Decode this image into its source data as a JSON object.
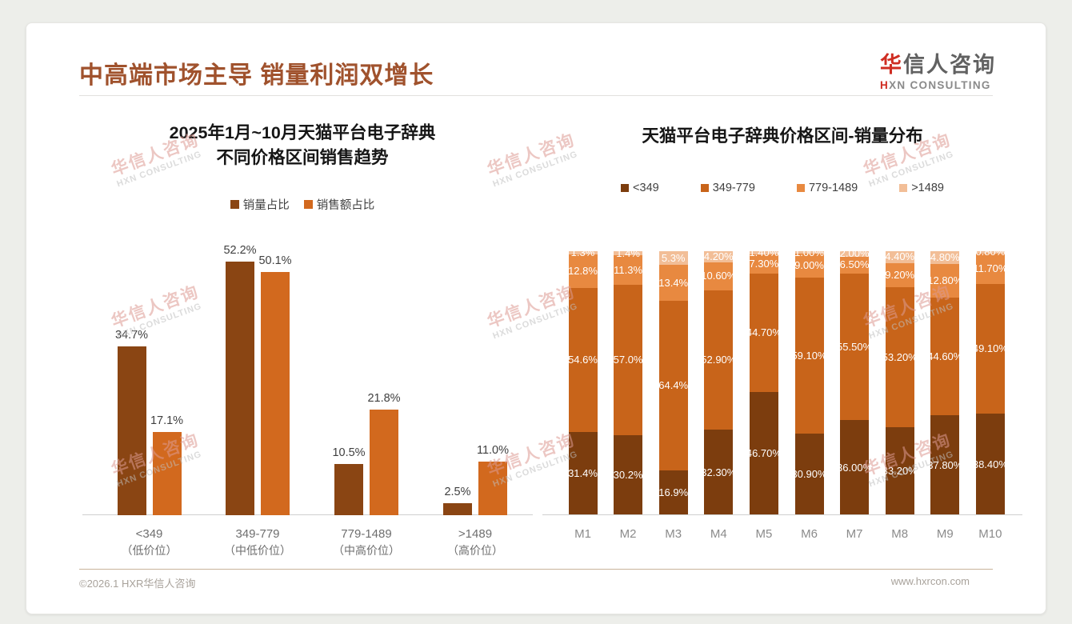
{
  "header": {
    "title": "中高端市场主导 销量利润双增长"
  },
  "logo": {
    "zh_first": "华",
    "zh_rest": "信人咨询",
    "en_first": "H",
    "en_rest": "XN CONSULTING"
  },
  "watermark": {
    "zh": "华信人咨询",
    "en": "HXN CONSULTING"
  },
  "footer": {
    "copyright": "©2026.1 HXR华信人咨询",
    "website": "www.hxrcon.com"
  },
  "colors": {
    "title_brown": "#A0522D",
    "dark_brown": "#8A4513",
    "orange": "#D2691E",
    "stack_dark": "#7C3D0E",
    "stack_mid": "#C8641A",
    "stack_light": "#E88940",
    "stack_peach": "#F2BE97",
    "axis_gray": "#cfcfcf"
  },
  "chart_data": [
    {
      "type": "bar",
      "title_line1": "2025年1月~10月天猫平台电子辞典",
      "title_line2": "不同价格区间销售趋势",
      "unit": "%",
      "ylim": [
        0,
        60
      ],
      "grid": false,
      "legend_position": "top",
      "categories": [
        "<349",
        "349-779",
        "779-1489",
        ">1489"
      ],
      "category_sublabels": [
        "（低价位）",
        "（中低价位）",
        "（中高价位）",
        "（高价位）"
      ],
      "series": [
        {
          "name": "销量占比",
          "color": "#8A4513",
          "values": [
            34.7,
            52.2,
            10.5,
            2.5
          ],
          "labels": [
            "34.7%",
            "52.2%",
            "10.5%",
            "2.5%"
          ]
        },
        {
          "name": "销售额占比",
          "color": "#D2691E",
          "values": [
            17.1,
            50.1,
            21.8,
            11.0
          ],
          "labels": [
            "17.1%",
            "50.1%",
            "21.8%",
            "11.0%"
          ]
        }
      ]
    },
    {
      "type": "stacked-bar",
      "title": "天猫平台电子辞典价格区间-销量分布",
      "unit": "%",
      "ylim": [
        0,
        100
      ],
      "grid": false,
      "legend_position": "top",
      "categories": [
        "M1",
        "M2",
        "M3",
        "M4",
        "M5",
        "M6",
        "M7",
        "M8",
        "M9",
        "M10"
      ],
      "series": [
        {
          "name": "<349",
          "color": "#7C3D0E",
          "values": [
            31.4,
            30.2,
            16.9,
            32.3,
            46.7,
            30.9,
            36.0,
            33.2,
            37.8,
            38.4
          ],
          "labels": [
            "31.4%",
            "30.2%",
            "16.9%",
            "32.30%",
            "46.70%",
            "30.90%",
            "36.00%",
            "33.20%",
            "37.80%",
            "38.40%"
          ]
        },
        {
          "name": "349-779",
          "color": "#C8641A",
          "values": [
            54.6,
            57.0,
            64.4,
            52.9,
            44.7,
            59.1,
            55.5,
            53.2,
            44.6,
            49.1
          ],
          "labels": [
            "54.6%",
            "57.0%",
            "64.4%",
            "52.90%",
            "44.70%",
            "59.10%",
            "55.50%",
            "53.20%",
            "44.60%",
            "49.10%"
          ]
        },
        {
          "name": "779-1489",
          "color": "#E88940",
          "values": [
            12.8,
            11.3,
            13.4,
            10.6,
            7.3,
            9.0,
            6.5,
            9.2,
            12.8,
            11.7
          ],
          "labels": [
            "12.8%",
            "11.3%",
            "13.4%",
            "10.60%",
            "7.30%",
            "9.00%",
            "6.50%",
            "9.20%",
            "12.80%",
            "11.70%"
          ]
        },
        {
          "name": ">1489",
          "color": "#F2BE97",
          "values": [
            1.3,
            1.4,
            5.3,
            4.2,
            1.4,
            1.0,
            2.0,
            4.4,
            4.8,
            0.8
          ],
          "labels": [
            "1.3%",
            "1.4%",
            "5.3%",
            "4.20%",
            "1.40%",
            "1.00%",
            "2.00%",
            "4.40%",
            "4.80%",
            "0.80%"
          ]
        }
      ]
    }
  ]
}
